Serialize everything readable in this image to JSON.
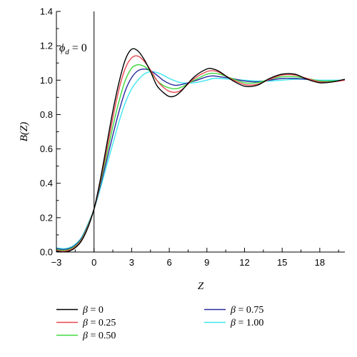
{
  "chart_data": {
    "type": "line",
    "xlabel": "Z",
    "ylabel": "B(Z)",
    "xlim": [
      -3,
      20
    ],
    "ylim": [
      0,
      1.4
    ],
    "x_ticks": [
      -3,
      0,
      3,
      6,
      9,
      12,
      15,
      18
    ],
    "y_ticks": [
      0.0,
      0.2,
      0.4,
      0.6,
      0.8,
      1.0,
      1.2,
      1.4
    ],
    "x_tick_labels": [
      "−3",
      "0",
      "3",
      "6",
      "9",
      "12",
      "15",
      "18"
    ],
    "y_tick_labels": [
      "0.0",
      "0.2",
      "0.4",
      "0.6",
      "0.8",
      "1.0",
      "1.2",
      "1.4"
    ],
    "annotation": {
      "text": "ϕd = 0",
      "main": "ϕ",
      "sub": "d",
      "rest": " = 0"
    },
    "vertical_line_at": 0,
    "grid": false,
    "legend_placement": "bottom",
    "series": [
      {
        "name": "β = 0",
        "color": "#000000",
        "x": [
          -3,
          -2.5,
          -2,
          -1.5,
          -1,
          -0.5,
          0,
          0.5,
          1,
          1.5,
          2,
          2.5,
          3,
          3.5,
          4,
          4.5,
          5,
          5.5,
          6,
          6.5,
          7,
          8,
          9,
          9.5,
          10,
          11,
          12,
          13,
          14,
          15,
          16,
          17,
          18,
          19,
          20
        ],
        "y": [
          0.005,
          0.0,
          0.005,
          0.025,
          0.065,
          0.14,
          0.25,
          0.42,
          0.62,
          0.82,
          0.99,
          1.12,
          1.18,
          1.17,
          1.12,
          1.05,
          0.97,
          0.93,
          0.905,
          0.91,
          0.94,
          1.02,
          1.065,
          1.065,
          1.05,
          1.0,
          0.965,
          0.97,
          1.01,
          1.035,
          1.035,
          1.005,
          0.985,
          0.99,
          1.005
        ]
      },
      {
        "name": "β = 0.25",
        "color": "#e8464f",
        "x": [
          -3,
          -2.5,
          -2,
          -1.5,
          -1,
          -0.5,
          0,
          0.5,
          1,
          1.5,
          2,
          2.5,
          3,
          3.5,
          4,
          4.5,
          5,
          5.5,
          6,
          6.5,
          7,
          8,
          9,
          9.5,
          10,
          11,
          12,
          13,
          14,
          15,
          16,
          17,
          18,
          19,
          20
        ],
        "y": [
          0.01,
          0.005,
          0.01,
          0.03,
          0.07,
          0.145,
          0.25,
          0.41,
          0.59,
          0.78,
          0.95,
          1.07,
          1.13,
          1.14,
          1.11,
          1.06,
          1.0,
          0.96,
          0.935,
          0.93,
          0.945,
          1.01,
          1.05,
          1.055,
          1.045,
          1.005,
          0.975,
          0.975,
          1.005,
          1.03,
          1.03,
          1.01,
          0.99,
          0.99,
          1.0
        ]
      },
      {
        "name": "β = 0.50",
        "color": "#3dd83d",
        "x": [
          -3,
          -2.5,
          -2,
          -1.5,
          -1,
          -0.5,
          0,
          0.5,
          1,
          1.5,
          2,
          2.5,
          3,
          3.5,
          4,
          4.5,
          5,
          5.5,
          6,
          6.5,
          7,
          8,
          9,
          9.5,
          10,
          11,
          12,
          13,
          14,
          15,
          16,
          17,
          18,
          19,
          20
        ],
        "y": [
          0.015,
          0.01,
          0.015,
          0.035,
          0.075,
          0.15,
          0.25,
          0.4,
          0.56,
          0.73,
          0.88,
          1.0,
          1.07,
          1.09,
          1.08,
          1.05,
          1.0,
          0.97,
          0.955,
          0.95,
          0.96,
          1.0,
          1.035,
          1.04,
          1.035,
          1.01,
          0.985,
          0.985,
          1.005,
          1.02,
          1.02,
          1.01,
          0.995,
          0.995,
          1.0
        ]
      },
      {
        "name": "β = 0.75",
        "color": "#2a2aa0",
        "x": [
          -3,
          -2.5,
          -2,
          -1.5,
          -1,
          -0.5,
          0,
          0.5,
          1,
          1.5,
          2,
          2.5,
          3,
          3.5,
          4,
          4.5,
          5,
          5.5,
          6,
          6.5,
          7,
          8,
          9,
          9.5,
          10,
          11,
          12,
          13,
          14,
          15,
          16,
          17,
          18,
          19,
          20
        ],
        "y": [
          0.02,
          0.015,
          0.02,
          0.04,
          0.08,
          0.155,
          0.25,
          0.385,
          0.53,
          0.68,
          0.82,
          0.94,
          1.015,
          1.055,
          1.065,
          1.055,
          1.03,
          1.0,
          0.98,
          0.97,
          0.975,
          0.995,
          1.02,
          1.025,
          1.02,
          1.01,
          0.995,
          0.99,
          1.0,
          1.01,
          1.01,
          1.005,
          0.995,
          0.995,
          1.0
        ]
      },
      {
        "name": "β = 1.00",
        "color": "#3ee6ee",
        "x": [
          -3,
          -2.5,
          -2,
          -1.5,
          -1,
          -0.5,
          0,
          0.5,
          1,
          1.5,
          2,
          2.5,
          3,
          3.5,
          4,
          4.5,
          5,
          5.5,
          6,
          6.5,
          7,
          8,
          9,
          9.5,
          10,
          11,
          12,
          13,
          14,
          15,
          16,
          17,
          18,
          19,
          20
        ],
        "y": [
          0.025,
          0.02,
          0.025,
          0.045,
          0.085,
          0.16,
          0.25,
          0.37,
          0.5,
          0.63,
          0.76,
          0.87,
          0.95,
          1.0,
          1.035,
          1.05,
          1.045,
          1.03,
          1.01,
          0.995,
          0.985,
          0.985,
          1.0,
          1.01,
          1.01,
          1.005,
          1.0,
          0.995,
          0.995,
          1.0,
          1.005,
          1.005,
          1.0,
          1.0,
          1.0
        ]
      }
    ]
  }
}
